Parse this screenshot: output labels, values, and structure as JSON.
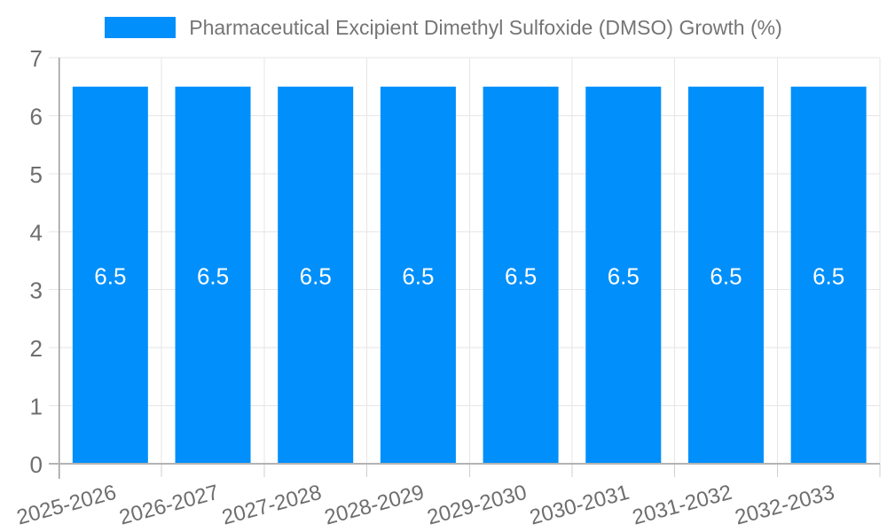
{
  "legend": {
    "label": "Pharmaceutical Excipient Dimethyl Sulfoxide (DMSO) Growth (%)"
  },
  "chart_data": {
    "type": "bar",
    "title": "Pharmaceutical Excipient Dimethyl Sulfoxide (DMSO) Growth (%)",
    "series_name": "Pharmaceutical Excipient Dimethyl Sulfoxide (DMSO) Growth (%)",
    "categories": [
      "2025-2026",
      "2026-2027",
      "2027-2028",
      "2028-2029",
      "2029-2030",
      "2030-2031",
      "2031-2032",
      "2032-2033"
    ],
    "values": [
      6.5,
      6.5,
      6.5,
      6.5,
      6.5,
      6.5,
      6.5,
      6.5
    ],
    "value_labels": [
      "6.5",
      "6.5",
      "6.5",
      "6.5",
      "6.5",
      "6.5",
      "6.5",
      "6.5"
    ],
    "xlabel": "",
    "ylabel": "",
    "ylim": [
      0,
      7
    ],
    "ytick_labels": [
      "0",
      "1",
      "2",
      "3",
      "4",
      "5",
      "6",
      "7"
    ],
    "grid": true,
    "legend_position": "top",
    "x_label_rotation_deg": -15,
    "colors": {
      "bar": "#008FFB",
      "bar_label": "#FFFFFF",
      "legend_text": "#757575",
      "axis_text": "#6E6E6E",
      "grid": "#E6E6E6",
      "y_axis_line": "#9C9C9C",
      "x_axis_line": "#B3B3B3",
      "x_tick": "#CFCFCF"
    }
  }
}
